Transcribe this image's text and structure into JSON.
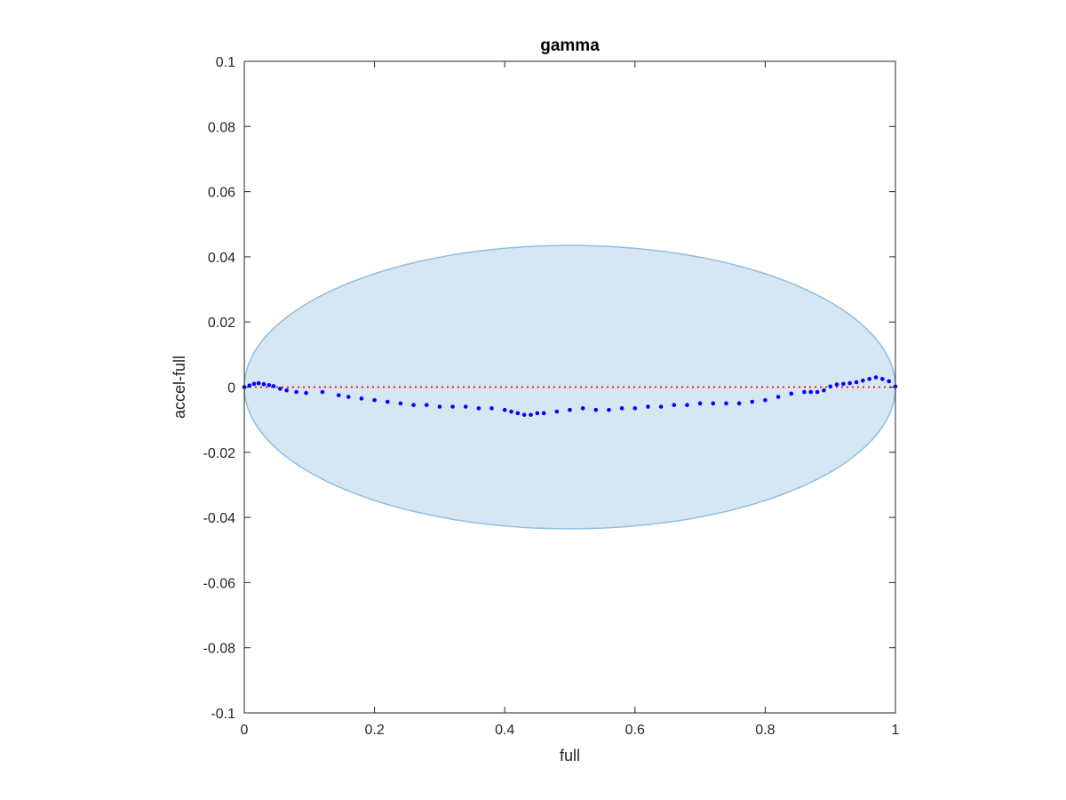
{
  "chart_data": {
    "type": "scatter",
    "title": "gamma",
    "xlabel": "full",
    "ylabel": "accel-full",
    "xlim": [
      0,
      1
    ],
    "ylim": [
      -0.1,
      0.1
    ],
    "xticks": [
      0,
      0.2,
      0.4,
      0.6,
      0.8,
      1
    ],
    "xtick_labels": [
      "0",
      "0.2",
      "0.4",
      "0.6",
      "0.8",
      "1"
    ],
    "yticks": [
      0.1,
      0.08,
      0.06,
      0.04,
      0.02,
      0,
      -0.02,
      -0.04,
      -0.06,
      -0.08,
      -0.1
    ],
    "ytick_labels": [
      "0.1",
      "0.08",
      "0.06",
      "0.04",
      "0.02",
      "0",
      "-0.02",
      "-0.04",
      "-0.06",
      "-0.08",
      "-0.1"
    ],
    "grid": false,
    "box": true,
    "reference_line": {
      "y": 0,
      "style": "dotted",
      "color": "#ff0000"
    },
    "ellipse": {
      "center_x": 0.5,
      "center_y": 0,
      "half_width_x": 0.5,
      "half_height_y": 0.0435,
      "fill": "#d6e6f2",
      "stroke": "#8fbfdf"
    },
    "series": [
      {
        "marker": "dot",
        "color": "#0000ff",
        "x": [
          0,
          0.008,
          0.015,
          0.022,
          0.03,
          0.038,
          0.045,
          0.055,
          0.065,
          0.08,
          0.095,
          0.12,
          0.145,
          0.16,
          0.18,
          0.2,
          0.22,
          0.24,
          0.26,
          0.28,
          0.3,
          0.32,
          0.34,
          0.36,
          0.38,
          0.4,
          0.41,
          0.42,
          0.43,
          0.44,
          0.45,
          0.46,
          0.48,
          0.5,
          0.52,
          0.54,
          0.56,
          0.58,
          0.6,
          0.62,
          0.64,
          0.66,
          0.68,
          0.7,
          0.72,
          0.74,
          0.76,
          0.78,
          0.8,
          0.82,
          0.84,
          0.86,
          0.87,
          0.88,
          0.89,
          0.9,
          0.91,
          0.92,
          0.93,
          0.94,
          0.95,
          0.96,
          0.97,
          0.98,
          0.99,
          1.0
        ],
        "y": [
          0,
          0.0005,
          0.001,
          0.0012,
          0.0009,
          0.0006,
          0.0003,
          -0.0005,
          -0.001,
          -0.0015,
          -0.0018,
          -0.0015,
          -0.0025,
          -0.003,
          -0.0035,
          -0.004,
          -0.0045,
          -0.005,
          -0.0055,
          -0.0055,
          -0.006,
          -0.006,
          -0.006,
          -0.0065,
          -0.0065,
          -0.007,
          -0.0075,
          -0.008,
          -0.0085,
          -0.0085,
          -0.008,
          -0.008,
          -0.0075,
          -0.007,
          -0.0065,
          -0.007,
          -0.007,
          -0.0065,
          -0.0065,
          -0.006,
          -0.006,
          -0.0055,
          -0.0055,
          -0.005,
          -0.005,
          -0.005,
          -0.005,
          -0.0045,
          -0.004,
          -0.003,
          -0.002,
          -0.0015,
          -0.0015,
          -0.0015,
          -0.001,
          0.0002,
          0.0008,
          0.001,
          0.0012,
          0.0015,
          0.002,
          0.0025,
          0.003,
          0.0025,
          0.0018,
          0.0002
        ]
      }
    ]
  }
}
